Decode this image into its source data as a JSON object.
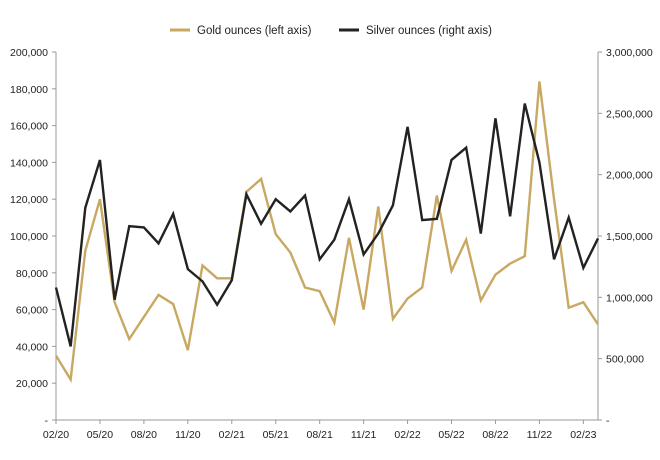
{
  "chart_data": {
    "type": "line",
    "title": "",
    "xlabel": "",
    "ylabel_left": "",
    "ylabel_right": "",
    "grid": false,
    "legend_position": "top-center",
    "x_tick_labels": [
      "02/20",
      "05/20",
      "08/20",
      "11/20",
      "02/21",
      "05/21",
      "08/21",
      "11/21",
      "02/22",
      "05/22",
      "08/22",
      "11/22",
      "02/23"
    ],
    "y_left": {
      "min": 0,
      "max": 200000,
      "tick_labels": [
        "-",
        "20,000",
        "40,000",
        "60,000",
        "80,000",
        "100,000",
        "120,000",
        "140,000",
        "160,000",
        "180,000",
        "200,000"
      ]
    },
    "y_right": {
      "min": 0,
      "max": 3000000,
      "tick_labels": [
        "-",
        "500,000",
        "1,000,000",
        "1,500,000",
        "2,000,000",
        "2,500,000",
        "3,000,000"
      ]
    },
    "series": [
      {
        "name": "Gold ounces (left axis)",
        "axis": "left",
        "color": "#c8a862",
        "values": [
          35000,
          22000,
          92000,
          120000,
          64000,
          44000,
          56000,
          68000,
          63000,
          38000,
          84000,
          77000,
          77000,
          124000,
          131000,
          101000,
          91000,
          72000,
          70000,
          53000,
          99000,
          60000,
          116000,
          55000,
          66000,
          72000,
          122000,
          81000,
          98000,
          65000,
          79000,
          85000,
          89000,
          184000,
          120000,
          61000,
          64000,
          52000
        ]
      },
      {
        "name": "Silver ounces (right axis)",
        "axis": "right",
        "color": "#222222",
        "values": [
          1080000,
          600000,
          1730000,
          2120000,
          980000,
          1580000,
          1570000,
          1440000,
          1680000,
          1230000,
          1130000,
          940000,
          1140000,
          1840000,
          1600000,
          1800000,
          1700000,
          1830000,
          1310000,
          1470000,
          1800000,
          1350000,
          1520000,
          1750000,
          2390000,
          1630000,
          1640000,
          2120000,
          2220000,
          1520000,
          2460000,
          1660000,
          2580000,
          2100000,
          1310000,
          1650000,
          1240000,
          1480000
        ]
      }
    ]
  }
}
